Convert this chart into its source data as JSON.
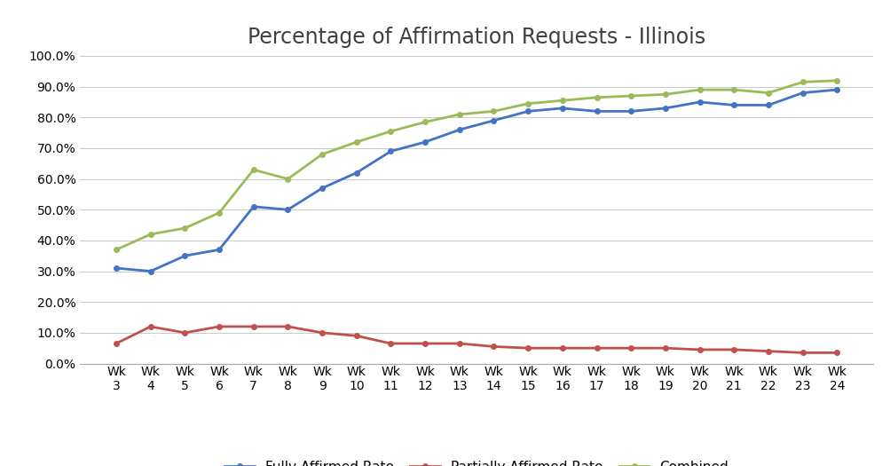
{
  "title": "Percentage of Affirmation Requests - Illinois",
  "weeks": [
    "Wk\n3",
    "Wk\n4",
    "Wk\n5",
    "Wk\n6",
    "Wk\n7",
    "Wk\n8",
    "Wk\n9",
    "Wk\n10",
    "Wk\n11",
    "Wk\n12",
    "Wk\n13",
    "Wk\n14",
    "Wk\n15",
    "Wk\n16",
    "Wk\n17",
    "Wk\n18",
    "Wk\n19",
    "Wk\n20",
    "Wk\n21",
    "Wk\n22",
    "Wk\n23",
    "Wk\n24"
  ],
  "fully_affirmed": [
    0.31,
    0.3,
    0.35,
    0.37,
    0.51,
    0.5,
    0.57,
    0.62,
    0.69,
    0.72,
    0.76,
    0.79,
    0.82,
    0.83,
    0.82,
    0.82,
    0.83,
    0.85,
    0.84,
    0.84,
    0.88,
    0.89
  ],
  "partially_affirmed": [
    0.065,
    0.12,
    0.1,
    0.12,
    0.12,
    0.12,
    0.1,
    0.09,
    0.065,
    0.065,
    0.065,
    0.055,
    0.05,
    0.05,
    0.05,
    0.05,
    0.05,
    0.045,
    0.045,
    0.04,
    0.035,
    0.035
  ],
  "combined": [
    0.37,
    0.42,
    0.44,
    0.49,
    0.63,
    0.6,
    0.68,
    0.72,
    0.755,
    0.785,
    0.81,
    0.82,
    0.845,
    0.855,
    0.865,
    0.87,
    0.875,
    0.89,
    0.89,
    0.88,
    0.915,
    0.92
  ],
  "fully_affirmed_color": "#4472C4",
  "partially_affirmed_color": "#C0504D",
  "combined_color": "#9BBB59",
  "background_color": "#FFFFFF",
  "ylim": [
    0.0,
    1.0
  ],
  "yticks": [
    0.0,
    0.1,
    0.2,
    0.3,
    0.4,
    0.5,
    0.6,
    0.7,
    0.8,
    0.9,
    1.0
  ],
  "title_fontsize": 17,
  "legend_fontsize": 11,
  "tick_fontsize": 10,
  "line_width": 2.0,
  "marker": "o",
  "marker_size": 4
}
